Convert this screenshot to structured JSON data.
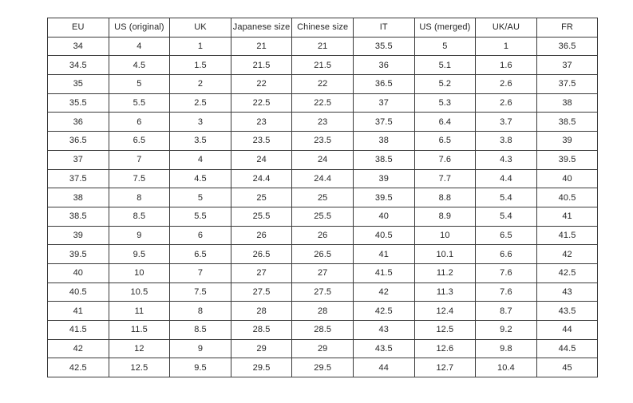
{
  "colors": {
    "background": "#ffffff",
    "border": "#3a3a3a",
    "text": "#262626"
  },
  "table": {
    "headers": [
      "EU",
      "US (original)",
      "UK",
      "Japanese size",
      "Chinese size",
      "IT",
      "US (merged)",
      "UK/AU",
      "FR"
    ],
    "rows": [
      [
        "34",
        "4",
        "1",
        "21",
        "21",
        "35.5",
        "5",
        "1",
        "36.5"
      ],
      [
        "34.5",
        "4.5",
        "1.5",
        "21.5",
        "21.5",
        "36",
        "5.1",
        "1.6",
        "37"
      ],
      [
        "35",
        "5",
        "2",
        "22",
        "22",
        "36.5",
        "5.2",
        "2.6",
        "37.5"
      ],
      [
        "35.5",
        "5.5",
        "2.5",
        "22.5",
        "22.5",
        "37",
        "5.3",
        "2.6",
        "38"
      ],
      [
        "36",
        "6",
        "3",
        "23",
        "23",
        "37.5",
        "6.4",
        "3.7",
        "38.5"
      ],
      [
        "36.5",
        "6.5",
        "3.5",
        "23.5",
        "23.5",
        "38",
        "6.5",
        "3.8",
        "39"
      ],
      [
        "37",
        "7",
        "4",
        "24",
        "24",
        "38.5",
        "7.6",
        "4.3",
        "39.5"
      ],
      [
        "37.5",
        "7.5",
        "4.5",
        "24.4",
        "24.4",
        "39",
        "7.7",
        "4.4",
        "40"
      ],
      [
        "38",
        "8",
        "5",
        "25",
        "25",
        "39.5",
        "8.8",
        "5.4",
        "40.5"
      ],
      [
        "38.5",
        "8.5",
        "5.5",
        "25.5",
        "25.5",
        "40",
        "8.9",
        "5.4",
        "41"
      ],
      [
        "39",
        "9",
        "6",
        "26",
        "26",
        "40.5",
        "10",
        "6.5",
        "41.5"
      ],
      [
        "39.5",
        "9.5",
        "6.5",
        "26.5",
        "26.5",
        "41",
        "10.1",
        "6.6",
        "42"
      ],
      [
        "40",
        "10",
        "7",
        "27",
        "27",
        "41.5",
        "11.2",
        "7.6",
        "42.5"
      ],
      [
        "40.5",
        "10.5",
        "7.5",
        "27.5",
        "27.5",
        "42",
        "11.3",
        "7.6",
        "43"
      ],
      [
        "41",
        "11",
        "8",
        "28",
        "28",
        "42.5",
        "12.4",
        "8.7",
        "43.5"
      ],
      [
        "41.5",
        "11.5",
        "8.5",
        "28.5",
        "28.5",
        "43",
        "12.5",
        "9.2",
        "44"
      ],
      [
        "42",
        "12",
        "9",
        "29",
        "29",
        "43.5",
        "12.6",
        "9.8",
        "44.5"
      ],
      [
        "42.5",
        "12.5",
        "9.5",
        "29.5",
        "29.5",
        "44",
        "12.7",
        "10.4",
        "45"
      ]
    ]
  },
  "chart_data": {
    "type": "table",
    "columns": [
      "EU",
      "US (original)",
      "UK",
      "Japanese size",
      "Chinese size",
      "IT",
      "US (merged)",
      "UK/AU",
      "FR"
    ],
    "rows": [
      [
        34,
        4,
        1,
        21,
        21,
        35.5,
        5,
        1,
        36.5
      ],
      [
        34.5,
        4.5,
        1.5,
        21.5,
        21.5,
        36,
        5.1,
        1.6,
        37
      ],
      [
        35,
        5,
        2,
        22,
        22,
        36.5,
        5.2,
        2.6,
        37.5
      ],
      [
        35.5,
        5.5,
        2.5,
        22.5,
        22.5,
        37,
        5.3,
        2.6,
        38
      ],
      [
        36,
        6,
        3,
        23,
        23,
        37.5,
        6.4,
        3.7,
        38.5
      ],
      [
        36.5,
        6.5,
        3.5,
        23.5,
        23.5,
        38,
        6.5,
        3.8,
        39
      ],
      [
        37,
        7,
        4,
        24,
        24,
        38.5,
        7.6,
        4.3,
        39.5
      ],
      [
        37.5,
        7.5,
        4.5,
        24.4,
        24.4,
        39,
        7.7,
        4.4,
        40
      ],
      [
        38,
        8,
        5,
        25,
        25,
        39.5,
        8.8,
        5.4,
        40.5
      ],
      [
        38.5,
        8.5,
        5.5,
        25.5,
        25.5,
        40,
        8.9,
        5.4,
        41
      ],
      [
        39,
        9,
        6,
        26,
        26,
        40.5,
        10,
        6.5,
        41.5
      ],
      [
        39.5,
        9.5,
        6.5,
        26.5,
        26.5,
        41,
        10.1,
        6.6,
        42
      ],
      [
        40,
        10,
        7,
        27,
        27,
        41.5,
        11.2,
        7.6,
        42.5
      ],
      [
        40.5,
        10.5,
        7.5,
        27.5,
        27.5,
        42,
        11.3,
        7.6,
        43
      ],
      [
        41,
        11,
        8,
        28,
        28,
        42.5,
        12.4,
        8.7,
        43.5
      ],
      [
        41.5,
        11.5,
        8.5,
        28.5,
        28.5,
        43,
        12.5,
        9.2,
        44
      ],
      [
        42,
        12,
        9,
        29,
        29,
        43.5,
        12.6,
        9.8,
        44.5
      ],
      [
        42.5,
        12.5,
        9.5,
        29.5,
        29.5,
        44,
        12.7,
        10.4,
        45
      ]
    ]
  }
}
